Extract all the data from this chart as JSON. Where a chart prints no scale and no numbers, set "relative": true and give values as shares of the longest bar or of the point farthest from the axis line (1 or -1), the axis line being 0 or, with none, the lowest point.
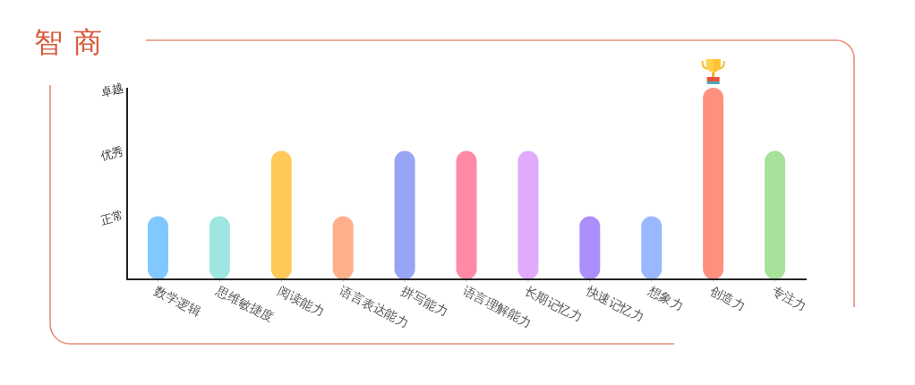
{
  "chart_data": {
    "type": "bar",
    "title": "智商",
    "categories": [
      "数学逻辑",
      "思维敏捷度",
      "阅读能力",
      "语言表达能力",
      "拼写能力",
      "语言理解能力",
      "长期记忆力",
      "快速记忆力",
      "想象力",
      "创造力",
      "专注力"
    ],
    "values": [
      0.33,
      0.33,
      0.67,
      0.33,
      0.67,
      0.67,
      0.67,
      0.33,
      0.33,
      1,
      0.67
    ],
    "colors": [
      "#80c8ff",
      "#9fe6e0",
      "#ffc95a",
      "#ffb08a",
      "#98a4f4",
      "#ff8aa8",
      "#e2aafb",
      "#ad8ffc",
      "#9ab8ff",
      "#ff907e",
      "#a6e29a"
    ],
    "relative": true,
    "annotations": [
      "正常",
      "优秀",
      "卓越"
    ]
  }
}
